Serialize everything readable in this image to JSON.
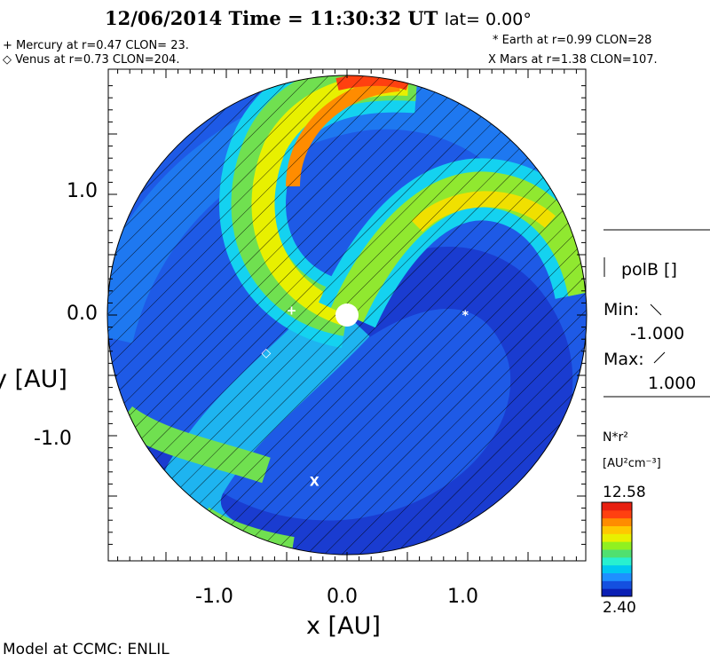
{
  "chart_data": {
    "type": "heatmap",
    "title": "12/06/2014 Time = 11:30:32 UT",
    "lat_label": "lat= 0.00°",
    "xlabel": "x [AU]",
    "ylabel": "y [AU]",
    "xlim": [
      -2,
      2
    ],
    "ylim": [
      -2,
      2
    ],
    "xticks": [
      "-1.0",
      "0.0",
      "1.0"
    ],
    "yticks": [
      "1.0",
      "0.0",
      "-1.0"
    ],
    "planets": [
      {
        "label": "+ Mercury at r=0.47 CLON= 23.",
        "symbol": "+",
        "x": -0.46,
        "y": 0.04
      },
      {
        "label": "◇ Venus at r=0.73 CLON=204.",
        "symbol": "◇",
        "x": -0.67,
        "y": -0.31
      },
      {
        "label": "* Earth at  r=0.99 CLON=28",
        "symbol": "*",
        "x": 0.98,
        "y": 0.0
      },
      {
        "label": "X Mars at r=1.38 CLON=107.",
        "symbol": "X",
        "x": -0.27,
        "y": -1.38
      }
    ],
    "overlay": {
      "name": "polB []",
      "min_label": "Min:",
      "min": "-1.000",
      "max_label": "Max:",
      "max": "1.000"
    },
    "colorbar": {
      "quantity": "N*r²",
      "units": "[AU²cm⁻³]",
      "max": "12.58",
      "min": "2.40",
      "colors": [
        "#0a1fb4",
        "#1450e0",
        "#1e90ff",
        "#00c8f0",
        "#28f0d0",
        "#50e070",
        "#90f020",
        "#e8f000",
        "#ffc800",
        "#ff8c00",
        "#ff4010",
        "#e82010"
      ]
    },
    "credit": "Model at CCMC: ENLIL"
  }
}
